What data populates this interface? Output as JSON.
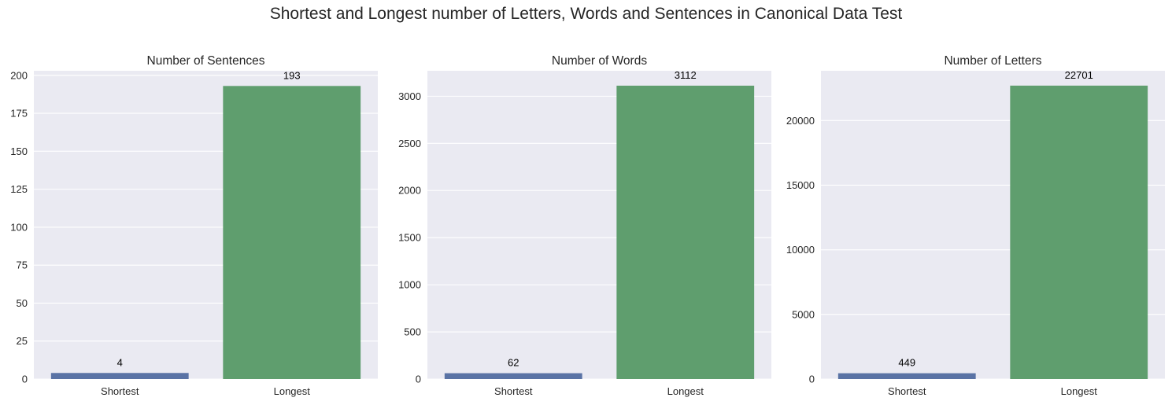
{
  "figure": {
    "suptitle": "Shortest and Longest number of Letters, Words and Sentences in Canonical Data Test"
  },
  "colors": {
    "axes_background": "#eaeaf2",
    "grid": "#ffffff",
    "shortest_bar": "#5a73a5",
    "longest_bar": "#5f9e6e"
  },
  "chart_data": [
    {
      "type": "bar",
      "title": "Number of Sentences",
      "categories": [
        "Shortest",
        "Longest"
      ],
      "values": [
        4,
        193
      ],
      "bar_labels": [
        "4",
        "193"
      ],
      "ylim": [
        0,
        203
      ],
      "yticks": [
        0,
        25,
        50,
        75,
        100,
        125,
        150,
        175,
        200
      ],
      "ytick_labels": [
        "0",
        "25",
        "50",
        "75",
        "100",
        "125",
        "150",
        "175",
        "200"
      ],
      "xlabel": "",
      "ylabel": "",
      "grid": true
    },
    {
      "type": "bar",
      "title": "Number of Words",
      "categories": [
        "Shortest",
        "Longest"
      ],
      "values": [
        62,
        3112
      ],
      "bar_labels": [
        "62",
        "3112"
      ],
      "ylim": [
        0,
        3270
      ],
      "yticks": [
        0,
        500,
        1000,
        1500,
        2000,
        2500,
        3000
      ],
      "ytick_labels": [
        "0",
        "500",
        "1000",
        "1500",
        "2000",
        "2500",
        "3000"
      ],
      "xlabel": "",
      "ylabel": "",
      "grid": true
    },
    {
      "type": "bar",
      "title": "Number of Letters",
      "categories": [
        "Shortest",
        "Longest"
      ],
      "values": [
        449,
        22701
      ],
      "bar_labels": [
        "449",
        "22701"
      ],
      "ylim": [
        0,
        23850
      ],
      "yticks": [
        0,
        5000,
        10000,
        15000,
        20000
      ],
      "ytick_labels": [
        "0",
        "5000",
        "10000",
        "15000",
        "20000"
      ],
      "xlabel": "",
      "ylabel": "",
      "grid": true
    }
  ]
}
